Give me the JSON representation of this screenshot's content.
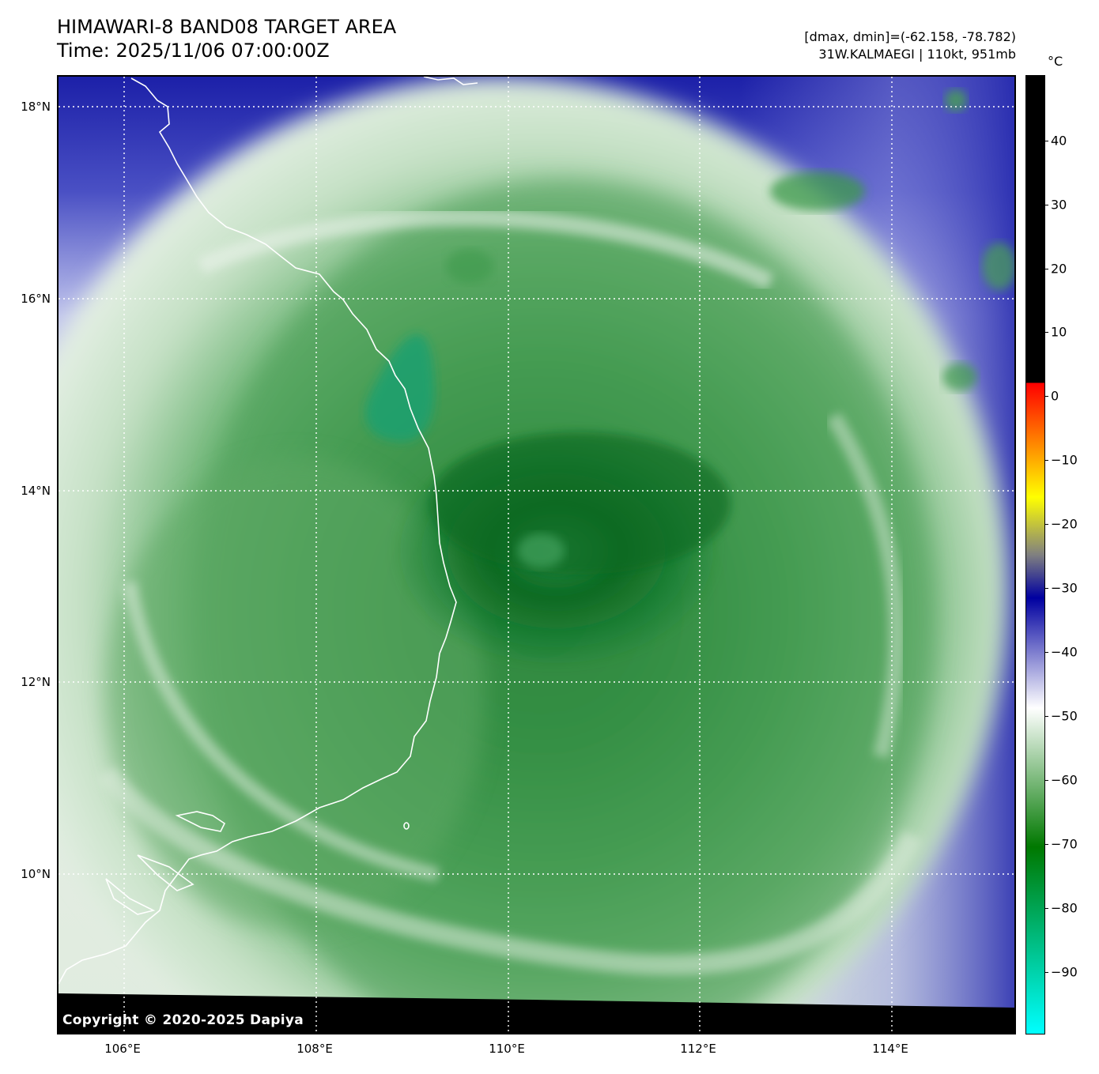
{
  "header": {
    "title": "HIMAWARI-8 BAND08 TARGET AREA",
    "time": "Time: 2025/11/06 07:00:00Z",
    "range_info": "[dmax, dmin]=(-62.158, -78.782)",
    "storm_info": "31W.KALMAEGI | 110kt, 951mb"
  },
  "map": {
    "copyright": "Copyright © 2020-2025 Dapiya",
    "lat_labels": [
      "18°N",
      "16°N",
      "14°N",
      "12°N",
      "10°N"
    ],
    "lon_labels": [
      "106°E",
      "108°E",
      "110°E",
      "112°E",
      "114°E"
    ],
    "coastline_color": "#ffffff",
    "gridline_color": "#ffffff"
  },
  "colorbar": {
    "unit": "°C",
    "ticks": [
      "40",
      "30",
      "20",
      "10",
      "0",
      "−10",
      "−20",
      "−30",
      "−40",
      "−50",
      "−60",
      "−70",
      "−80",
      "−90"
    ],
    "colors": {
      "warm_black": "#000000",
      "red": "#ff0000",
      "yellow": "#ffff00",
      "blue": "#0000a0",
      "white": "#ffffff",
      "green": "#007800",
      "cyan": "#00ffff"
    }
  }
}
